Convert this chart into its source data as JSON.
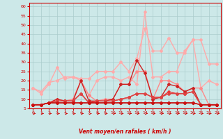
{
  "xlabel": "Vent moyen/en rafales ( km/h )",
  "background_color": "#cce8e8",
  "grid_color": "#aacccc",
  "xlim": [
    -0.5,
    23.5
  ],
  "ylim": [
    5,
    62
  ],
  "yticks": [
    5,
    10,
    15,
    20,
    25,
    30,
    35,
    40,
    45,
    50,
    55,
    60
  ],
  "xticks": [
    0,
    1,
    2,
    3,
    4,
    5,
    6,
    7,
    8,
    9,
    10,
    11,
    12,
    13,
    14,
    15,
    16,
    17,
    18,
    19,
    20,
    21,
    22,
    23
  ],
  "series": [
    {
      "color": "#ffaaaa",
      "lw": 1.0,
      "marker": "D",
      "ms": 2.0,
      "data": [
        [
          0,
          16
        ],
        [
          1,
          13
        ],
        [
          2,
          18
        ],
        [
          3,
          27
        ],
        [
          4,
          21
        ],
        [
          5,
          22
        ],
        [
          6,
          21
        ],
        [
          7,
          21
        ],
        [
          8,
          25
        ],
        [
          9,
          25
        ],
        [
          10,
          25
        ],
        [
          11,
          30
        ],
        [
          12,
          25
        ],
        [
          13,
          32
        ],
        [
          14,
          48
        ],
        [
          15,
          36
        ],
        [
          16,
          36
        ],
        [
          17,
          43
        ],
        [
          18,
          35
        ],
        [
          19,
          35
        ],
        [
          20,
          42
        ],
        [
          21,
          42
        ],
        [
          22,
          29
        ],
        [
          23,
          29
        ]
      ]
    },
    {
      "color": "#ffaaaa",
      "lw": 1.0,
      "marker": "D",
      "ms": 2.0,
      "data": [
        [
          0,
          16
        ],
        [
          1,
          14
        ],
        [
          2,
          19
        ],
        [
          3,
          20
        ],
        [
          4,
          22
        ],
        [
          5,
          22
        ],
        [
          6,
          20
        ],
        [
          7,
          12
        ],
        [
          8,
          20
        ],
        [
          9,
          22
        ],
        [
          10,
          22
        ],
        [
          11,
          20
        ],
        [
          12,
          22
        ],
        [
          13,
          18
        ],
        [
          14,
          57
        ],
        [
          15,
          22
        ],
        [
          16,
          22
        ],
        [
          17,
          25
        ],
        [
          18,
          25
        ],
        [
          19,
          36
        ],
        [
          20,
          42
        ],
        [
          21,
          16
        ],
        [
          22,
          20
        ],
        [
          23,
          18
        ]
      ]
    },
    {
      "color": "#ff8888",
      "lw": 1.0,
      "marker": "D",
      "ms": 2.0,
      "data": [
        [
          0,
          7
        ],
        [
          1,
          7
        ],
        [
          2,
          8
        ],
        [
          3,
          10
        ],
        [
          4,
          9
        ],
        [
          5,
          10
        ],
        [
          6,
          20
        ],
        [
          7,
          12
        ],
        [
          8,
          9
        ],
        [
          9,
          10
        ],
        [
          10,
          10
        ],
        [
          11,
          18
        ],
        [
          12,
          18
        ],
        [
          13,
          25
        ],
        [
          14,
          25
        ],
        [
          15,
          10
        ],
        [
          16,
          20
        ],
        [
          17,
          20
        ],
        [
          18,
          18
        ],
        [
          19,
          14
        ],
        [
          20,
          16
        ],
        [
          21,
          16
        ],
        [
          22,
          7
        ],
        [
          23,
          7
        ]
      ]
    },
    {
      "color": "#cc2222",
      "lw": 1.0,
      "marker": "D",
      "ms": 2.0,
      "data": [
        [
          0,
          7
        ],
        [
          1,
          7
        ],
        [
          2,
          8
        ],
        [
          3,
          10
        ],
        [
          4,
          9
        ],
        [
          5,
          9
        ],
        [
          6,
          20
        ],
        [
          7,
          9
        ],
        [
          8,
          9
        ],
        [
          9,
          9
        ],
        [
          10,
          10
        ],
        [
          11,
          18
        ],
        [
          12,
          18
        ],
        [
          13,
          31
        ],
        [
          14,
          24
        ],
        [
          15,
          10
        ],
        [
          16,
          11
        ],
        [
          17,
          18
        ],
        [
          18,
          17
        ],
        [
          19,
          14
        ],
        [
          20,
          16
        ],
        [
          21,
          7
        ],
        [
          22,
          7
        ],
        [
          23,
          7
        ]
      ]
    },
    {
      "color": "#ee3333",
      "lw": 1.0,
      "marker": "D",
      "ms": 2.0,
      "data": [
        [
          0,
          7
        ],
        [
          1,
          7
        ],
        [
          2,
          8
        ],
        [
          3,
          9
        ],
        [
          4,
          9
        ],
        [
          5,
          9
        ],
        [
          6,
          13
        ],
        [
          7,
          8
        ],
        [
          8,
          9
        ],
        [
          9,
          9
        ],
        [
          10,
          9
        ],
        [
          11,
          10
        ],
        [
          12,
          11
        ],
        [
          13,
          13
        ],
        [
          14,
          13
        ],
        [
          15,
          11
        ],
        [
          16,
          11
        ],
        [
          17,
          14
        ],
        [
          18,
          13
        ],
        [
          19,
          13
        ],
        [
          20,
          14
        ],
        [
          21,
          7
        ],
        [
          22,
          7
        ],
        [
          23,
          7
        ]
      ]
    },
    {
      "color": "#dd4444",
      "lw": 1.0,
      "marker": "D",
      "ms": 2.0,
      "data": [
        [
          0,
          7
        ],
        [
          1,
          7
        ],
        [
          2,
          8
        ],
        [
          3,
          9
        ],
        [
          4,
          9
        ],
        [
          5,
          9
        ],
        [
          6,
          13
        ],
        [
          7,
          8
        ],
        [
          8,
          9
        ],
        [
          9,
          9
        ],
        [
          10,
          9
        ],
        [
          11,
          10
        ],
        [
          12,
          11
        ],
        [
          13,
          13
        ],
        [
          14,
          13
        ],
        [
          15,
          11
        ],
        [
          16,
          11
        ],
        [
          17,
          13
        ],
        [
          18,
          13
        ],
        [
          19,
          13
        ],
        [
          20,
          14
        ],
        [
          21,
          7
        ],
        [
          22,
          7
        ],
        [
          23,
          7
        ]
      ]
    },
    {
      "color": "#bb1111",
      "lw": 1.0,
      "marker": "D",
      "ms": 2.0,
      "data": [
        [
          0,
          7
        ],
        [
          1,
          7
        ],
        [
          2,
          8
        ],
        [
          3,
          8
        ],
        [
          4,
          8
        ],
        [
          5,
          8
        ],
        [
          6,
          8
        ],
        [
          7,
          8
        ],
        [
          8,
          8
        ],
        [
          9,
          8
        ],
        [
          10,
          8
        ],
        [
          11,
          8
        ],
        [
          12,
          8
        ],
        [
          13,
          8
        ],
        [
          14,
          8
        ],
        [
          15,
          8
        ],
        [
          16,
          8
        ],
        [
          17,
          8
        ],
        [
          18,
          8
        ],
        [
          19,
          8
        ],
        [
          20,
          8
        ],
        [
          21,
          7
        ],
        [
          22,
          7
        ],
        [
          23,
          7
        ]
      ]
    },
    {
      "color": "#cc1111",
      "lw": 1.0,
      "marker": "D",
      "ms": 2.0,
      "data": [
        [
          0,
          7
        ],
        [
          1,
          7
        ],
        [
          2,
          8
        ],
        [
          3,
          8
        ],
        [
          4,
          8
        ],
        [
          5,
          8
        ],
        [
          6,
          8
        ],
        [
          7,
          8
        ],
        [
          8,
          8
        ],
        [
          9,
          8
        ],
        [
          10,
          8
        ],
        [
          11,
          8
        ],
        [
          12,
          8
        ],
        [
          13,
          8
        ],
        [
          14,
          8
        ],
        [
          15,
          8
        ],
        [
          16,
          8
        ],
        [
          17,
          8
        ],
        [
          18,
          8
        ],
        [
          19,
          8
        ],
        [
          20,
          8
        ],
        [
          21,
          7
        ],
        [
          22,
          7
        ],
        [
          23,
          7
        ]
      ]
    }
  ]
}
